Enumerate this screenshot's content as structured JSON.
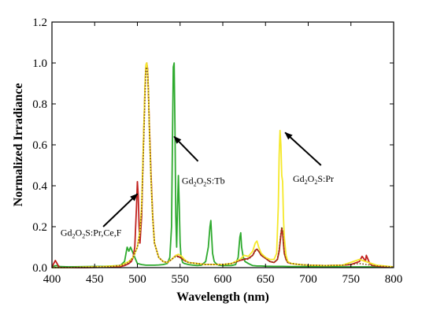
{
  "chart_data": {
    "type": "line",
    "xlabel": "Wavelength (nm)",
    "ylabel": "Normalized Irradiance",
    "xlim": [
      400,
      800
    ],
    "ylim": [
      0,
      1.2
    ],
    "xticks": [
      400,
      450,
      500,
      550,
      600,
      650,
      700,
      750,
      800
    ],
    "yticks": [
      0.0,
      0.2,
      0.4,
      0.6,
      0.8,
      1.0,
      1.2
    ],
    "grid": false,
    "colors": {
      "tb": "#2eaa2e",
      "pr": "#f5e82a",
      "prcef": "#c0201d",
      "dotted": "#7a4a10"
    },
    "annotations": [
      {
        "id": "tb",
        "base": "Gd",
        "s1": "2",
        "mid": "O",
        "s2": "2",
        "rest": "S:Tb",
        "x": 552,
        "y": 0.41,
        "arrow_from": [
          571,
          0.52
        ],
        "arrow_to": [
          543,
          0.64
        ]
      },
      {
        "id": "pr",
        "base": "Gd",
        "s1": "2",
        "mid": "O",
        "s2": "2",
        "rest": "S:Pr",
        "x": 682,
        "y": 0.42,
        "arrow_from": [
          715,
          0.5
        ],
        "arrow_to": [
          673,
          0.66
        ]
      },
      {
        "id": "prcef",
        "base": "Gd",
        "s1": "2",
        "mid": "O",
        "s2": "2",
        "rest": "S:Pr,Ce,F",
        "x": 410,
        "y": 0.155,
        "arrow_from": [
          460,
          0.2
        ],
        "arrow_to": [
          500,
          0.36
        ]
      }
    ],
    "series": [
      {
        "key": "tb",
        "x": [
          400,
          405,
          410,
          420,
          440,
          460,
          480,
          485,
          488,
          490,
          492,
          495,
          498,
          500,
          505,
          510,
          515,
          520,
          525,
          530,
          535,
          538,
          540,
          541,
          542,
          543,
          544,
          545,
          546,
          547,
          548,
          549,
          550,
          551,
          552,
          553,
          555,
          560,
          565,
          570,
          575,
          580,
          583,
          585,
          586,
          587,
          588,
          590,
          592,
          595,
          600,
          610,
          615,
          618,
          620,
          621,
          622,
          624,
          626,
          630,
          635,
          640,
          645,
          650,
          660,
          670,
          680,
          700,
          720,
          740,
          760,
          780,
          800
        ],
        "y": [
          0.005,
          0.01,
          0.005,
          0.004,
          0.005,
          0.006,
          0.01,
          0.03,
          0.1,
          0.08,
          0.1,
          0.07,
          0.04,
          0.02,
          0.015,
          0.012,
          0.012,
          0.012,
          0.013,
          0.015,
          0.02,
          0.05,
          0.2,
          0.6,
          0.98,
          1.0,
          0.7,
          0.25,
          0.1,
          0.3,
          0.45,
          0.3,
          0.12,
          0.06,
          0.04,
          0.025,
          0.02,
          0.015,
          0.012,
          0.01,
          0.012,
          0.03,
          0.1,
          0.2,
          0.23,
          0.15,
          0.07,
          0.03,
          0.02,
          0.012,
          0.01,
          0.01,
          0.015,
          0.05,
          0.15,
          0.17,
          0.1,
          0.05,
          0.03,
          0.02,
          0.01,
          0.008,
          0.008,
          0.007,
          0.006,
          0.006,
          0.005,
          0.005,
          0.005,
          0.004,
          0.004,
          0.004,
          0.004
        ]
      },
      {
        "key": "prcef",
        "x": [
          400,
          402,
          404,
          406,
          408,
          410,
          420,
          440,
          460,
          480,
          485,
          490,
          493,
          495,
          497,
          499,
          500,
          501,
          502,
          503,
          505,
          507,
          509,
          510,
          511,
          512,
          513,
          514,
          516,
          518,
          520,
          525,
          530,
          535,
          540,
          545,
          550,
          555,
          560,
          570,
          580,
          590,
          600,
          610,
          620,
          625,
          630,
          635,
          638,
          640,
          642,
          645,
          650,
          655,
          660,
          664,
          666,
          668,
          669,
          670,
          671,
          672,
          674,
          676,
          680,
          690,
          700,
          720,
          740,
          750,
          760,
          763,
          765,
          767,
          768,
          770,
          772,
          775,
          780,
          790,
          800
        ],
        "y": [
          0.0,
          0.02,
          0.035,
          0.02,
          0.005,
          0.0,
          0.0,
          0.0,
          0.002,
          0.005,
          0.01,
          0.02,
          0.03,
          0.05,
          0.1,
          0.3,
          0.42,
          0.35,
          0.2,
          0.12,
          0.25,
          0.6,
          0.9,
          0.99,
          1.0,
          0.97,
          0.85,
          0.7,
          0.45,
          0.25,
          0.12,
          0.05,
          0.03,
          0.025,
          0.04,
          0.06,
          0.05,
          0.035,
          0.025,
          0.02,
          0.015,
          0.015,
          0.015,
          0.02,
          0.035,
          0.04,
          0.045,
          0.06,
          0.085,
          0.09,
          0.08,
          0.06,
          0.045,
          0.03,
          0.025,
          0.04,
          0.08,
          0.16,
          0.19,
          0.17,
          0.12,
          0.07,
          0.04,
          0.025,
          0.02,
          0.015,
          0.012,
          0.01,
          0.012,
          0.015,
          0.03,
          0.055,
          0.045,
          0.03,
          0.06,
          0.04,
          0.02,
          0.01,
          0.008,
          0.004,
          0.003
        ]
      },
      {
        "key": "pr",
        "x": [
          400,
          420,
          440,
          460,
          480,
          485,
          490,
          495,
          500,
          503,
          505,
          507,
          509,
          510,
          511,
          512,
          513,
          514,
          516,
          518,
          520,
          525,
          530,
          535,
          540,
          545,
          548,
          550,
          552,
          555,
          560,
          570,
          580,
          590,
          600,
          610,
          620,
          625,
          630,
          635,
          638,
          640,
          642,
          645,
          650,
          655,
          660,
          663,
          665,
          666,
          667,
          668,
          669,
          670,
          671,
          672,
          674,
          676,
          680,
          690,
          700,
          720,
          740,
          760,
          780,
          800
        ],
        "y": [
          0.0,
          0.0,
          0.003,
          0.005,
          0.01,
          0.02,
          0.03,
          0.05,
          0.1,
          0.18,
          0.3,
          0.6,
          0.9,
          0.99,
          1.0,
          0.96,
          0.85,
          0.68,
          0.42,
          0.24,
          0.12,
          0.05,
          0.03,
          0.025,
          0.04,
          0.06,
          0.065,
          0.06,
          0.055,
          0.04,
          0.025,
          0.02,
          0.015,
          0.015,
          0.015,
          0.02,
          0.04,
          0.06,
          0.055,
          0.08,
          0.12,
          0.13,
          0.1,
          0.07,
          0.05,
          0.04,
          0.04,
          0.07,
          0.3,
          0.55,
          0.67,
          0.6,
          0.45,
          0.42,
          0.25,
          0.15,
          0.06,
          0.03,
          0.02,
          0.015,
          0.012,
          0.01,
          0.012,
          0.04,
          0.012,
          0.004
        ]
      },
      {
        "key": "dotted",
        "x": [
          400,
          440,
          470,
          485,
          490,
          495,
          500,
          503,
          505,
          507,
          509,
          510,
          511,
          512,
          513,
          514,
          516,
          518,
          520,
          525,
          530,
          535,
          540,
          545,
          550,
          555,
          560,
          570,
          580,
          590,
          600,
          610,
          620,
          625,
          630,
          635,
          638,
          640,
          642,
          645,
          650,
          655,
          660,
          664,
          666,
          668,
          669,
          670,
          671,
          672,
          674,
          676,
          680,
          690,
          700,
          720,
          740,
          760,
          780,
          800
        ],
        "y": [
          0.0,
          0.002,
          0.005,
          0.015,
          0.025,
          0.05,
          0.1,
          0.17,
          0.28,
          0.55,
          0.85,
          0.97,
          0.98,
          0.95,
          0.85,
          0.68,
          0.42,
          0.24,
          0.12,
          0.05,
          0.03,
          0.025,
          0.04,
          0.055,
          0.05,
          0.035,
          0.025,
          0.02,
          0.015,
          0.015,
          0.015,
          0.02,
          0.035,
          0.045,
          0.04,
          0.06,
          0.08,
          0.09,
          0.08,
          0.06,
          0.045,
          0.03,
          0.025,
          0.04,
          0.09,
          0.17,
          0.2,
          0.18,
          0.12,
          0.07,
          0.04,
          0.025,
          0.02,
          0.015,
          0.012,
          0.01,
          0.012,
          0.02,
          0.008,
          0.003
        ]
      }
    ]
  }
}
